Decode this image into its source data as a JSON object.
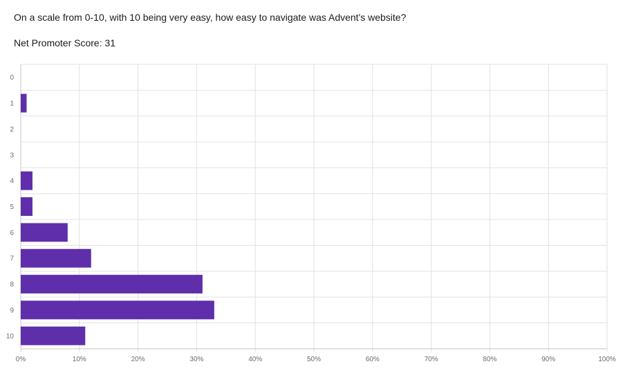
{
  "question": "On a scale from 0-10, with 10 being very easy, how easy to navigate was Advent's website?",
  "nps": "Net Promoter Score: 31",
  "colors": {
    "bar": "#5f2eab",
    "grid": "#e2e2e2",
    "axis": "#c4c4c4",
    "text": "#1a1a1a",
    "tick": "#6b6b6b"
  },
  "chart_data": {
    "type": "bar",
    "orientation": "horizontal",
    "categories": [
      "0",
      "1",
      "2",
      "3",
      "4",
      "5",
      "6",
      "7",
      "8",
      "9",
      "10"
    ],
    "values": [
      0,
      1,
      0,
      0,
      2,
      2,
      8,
      12,
      31,
      33,
      11
    ],
    "xlim": [
      0,
      100
    ],
    "xticks": [
      "0%",
      "10%",
      "20%",
      "30%",
      "40%",
      "50%",
      "60%",
      "70%",
      "80%",
      "90%",
      "100%"
    ],
    "grid": true
  }
}
